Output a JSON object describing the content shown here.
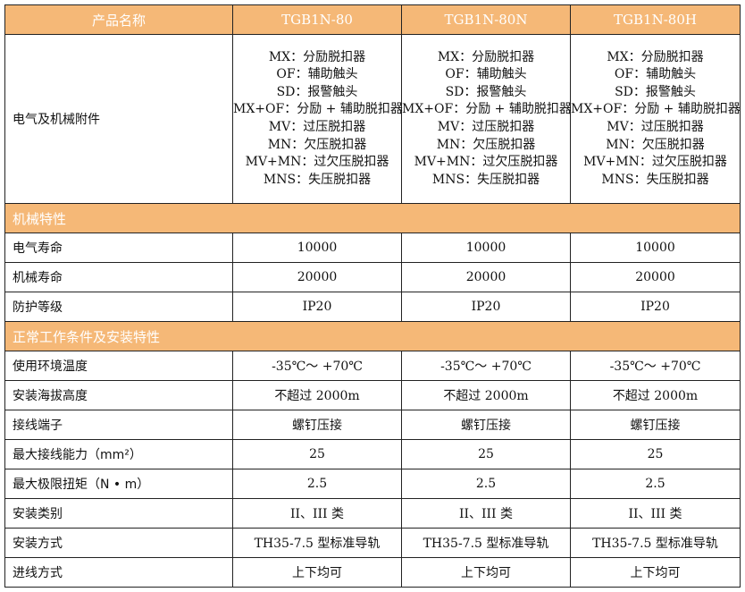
{
  "header": {
    "name_label": "产品名称",
    "models": [
      "TGB1N-80",
      "TGB1N-80N",
      "TGB1N-80H"
    ]
  },
  "accessories": {
    "label": "电气及机械附件",
    "items": [
      "MX：分励脱扣器",
      "OF：辅助触头",
      "SD：报警触头",
      "MX+OF：分励 + 辅助脱扣器",
      "MV：过压脱扣器",
      "MN：欠压脱扣器",
      "MV+MN：过欠压脱扣器",
      "MNS：失压脱扣器"
    ]
  },
  "sections": [
    {
      "title": "机械特性",
      "rows": [
        {
          "label": "电气寿命",
          "values": [
            "10000",
            "10000",
            "10000"
          ]
        },
        {
          "label": "机械寿命",
          "values": [
            "20000",
            "20000",
            "20000"
          ]
        },
        {
          "label": "防护等级",
          "values": [
            "IP20",
            "IP20",
            "IP20"
          ]
        }
      ]
    },
    {
      "title": "正常工作条件及安装特性",
      "rows": [
        {
          "label": "使用环境温度",
          "values": [
            "-35℃～ +70℃",
            "-35℃～ +70℃",
            "-35℃～ +70℃"
          ]
        },
        {
          "label": "安装海拔高度",
          "values": [
            "不超过 2000m",
            "不超过 2000m",
            "不超过 2000m"
          ]
        },
        {
          "label": "接线端子",
          "values": [
            "螺钉压接",
            "螺钉压接",
            "螺钉压接"
          ]
        },
        {
          "label": "最大接线能力（mm²）",
          "values": [
            "25",
            "25",
            "25"
          ]
        },
        {
          "label": "最大极限扭矩（N • m）",
          "values": [
            "2.5",
            "2.5",
            "2.5"
          ]
        },
        {
          "label": "安装类别",
          "values": [
            "II、III 类",
            "II、III 类",
            "II、III 类"
          ]
        },
        {
          "label": "安装方式",
          "values": [
            "TH35-7.5 型标准导轨",
            "TH35-7.5 型标准导轨",
            "TH35-7.5 型标准导轨"
          ]
        },
        {
          "label": "进线方式",
          "values": [
            "上下均可",
            "上下均可",
            "上下均可"
          ]
        }
      ]
    }
  ],
  "colors": {
    "header_bg": "#f5b877",
    "header_text": "#ffffff"
  }
}
